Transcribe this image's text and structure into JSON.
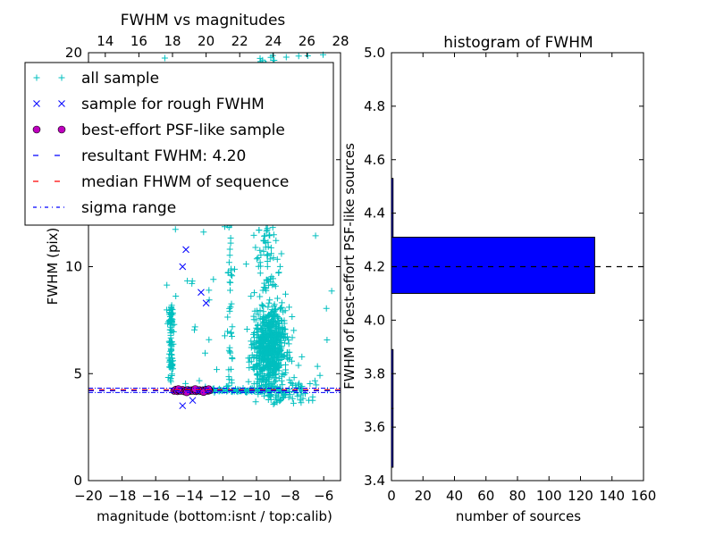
{
  "chart_data": [
    {
      "type": "scatter",
      "title": "FWHM vs magnitudes",
      "xlabel": "magnitude (bottom:isnt / top:calib)",
      "ylabel": "FWHM (pix)",
      "xlim": [
        -20,
        -5
      ],
      "ylim": [
        0,
        20
      ],
      "top_xlim": [
        13,
        28
      ],
      "x_ticks": [
        -20,
        -18,
        -16,
        -14,
        -12,
        -10,
        -8,
        -6
      ],
      "x_tick_labels": [
        "−20",
        "−18",
        "−16",
        "−14",
        "−12",
        "−10",
        "−8",
        "−6"
      ],
      "top_x_ticks": [
        14,
        16,
        18,
        20,
        22,
        24,
        26,
        28
      ],
      "top_x_tick_labels": [
        "14",
        "16",
        "18",
        "20",
        "22",
        "24",
        "26",
        "28"
      ],
      "y_ticks": [
        0,
        5,
        10,
        15,
        20
      ],
      "y_tick_labels": [
        "0",
        "5",
        "10",
        "15",
        "20"
      ],
      "grid": false,
      "legend_position": "top-left",
      "legend": [
        {
          "label": "all sample",
          "marker": "+",
          "color": "#00bfbf"
        },
        {
          "label": "sample for rough FWHM",
          "marker": "x",
          "color": "#0000ff"
        },
        {
          "label": "best-effort PSF-like sample",
          "marker": "o",
          "color": "#bf00bf"
        },
        {
          "label": "resultant FWHM: 4.20",
          "marker": "dashed",
          "color": "#0000ff"
        },
        {
          "label": "median FHWM of sequence",
          "marker": "dashed",
          "color": "#ff0000"
        },
        {
          "label": "sigma range",
          "marker": "dashdot",
          "color": "#0000ff"
        }
      ],
      "resultant_fwhm": 4.2,
      "median_fwhm": 4.25,
      "sigma_range": [
        4.12,
        4.32
      ],
      "series": [
        {
          "name": "sample for rough FWHM",
          "marker": "x",
          "color": "#0000ff",
          "points": [
            [
              -14.2,
              10.8
            ],
            [
              -14.4,
              10.0
            ],
            [
              -13.3,
              8.8
            ],
            [
              -13.0,
              8.3
            ],
            [
              -14.4,
              3.5
            ],
            [
              -13.8,
              3.75
            ],
            [
              -14.8,
              4.2
            ],
            [
              -14.0,
              4.25
            ],
            [
              -13.5,
              4.2
            ],
            [
              -12.9,
              4.28
            ]
          ]
        },
        {
          "name": "best-effort PSF-like sample",
          "marker": "o",
          "color": "#bf00bf",
          "points": [
            [
              -14.9,
              4.2
            ],
            [
              -14.8,
              4.25
            ],
            [
              -14.7,
              4.18
            ],
            [
              -14.6,
              4.22
            ],
            [
              -14.5,
              4.2
            ],
            [
              -14.4,
              4.24
            ],
            [
              -14.3,
              4.17
            ],
            [
              -14.2,
              4.21
            ],
            [
              -14.1,
              4.23
            ],
            [
              -14.0,
              4.19
            ],
            [
              -13.9,
              4.22
            ],
            [
              -13.8,
              4.2
            ],
            [
              -13.7,
              4.25
            ],
            [
              -13.6,
              4.18
            ],
            [
              -13.5,
              4.21
            ],
            [
              -13.4,
              4.23
            ],
            [
              -13.3,
              4.19
            ],
            [
              -13.2,
              4.22
            ],
            [
              -13.1,
              4.2
            ],
            [
              -13.0,
              4.24
            ],
            [
              -12.9,
              4.2
            ],
            [
              -12.8,
              4.22
            ],
            [
              -14.65,
              4.28
            ],
            [
              -14.15,
              4.13
            ],
            [
              -13.65,
              4.28
            ],
            [
              -13.15,
              4.14
            ],
            [
              -12.85,
              4.27
            ]
          ]
        }
      ]
    },
    {
      "type": "bar",
      "orientation": "horizontal",
      "title": "histogram of FWHM",
      "xlabel": "number of sources",
      "ylabel": "FWHM of best-effort PSF-like sources",
      "xlim": [
        0,
        160
      ],
      "ylim": [
        3.4,
        5.0
      ],
      "x_ticks": [
        0,
        20,
        40,
        60,
        80,
        100,
        120,
        140,
        160
      ],
      "y_ticks": [
        3.4,
        3.6,
        3.8,
        4.0,
        4.2,
        4.4,
        4.6,
        4.8,
        5.0
      ],
      "y_tick_labels": [
        "3.4",
        "3.6",
        "3.8",
        "4.0",
        "4.2",
        "4.4",
        "4.6",
        "4.8",
        "5.0"
      ],
      "grid": false,
      "bar_color": "#0000ff",
      "bins": [
        {
          "low": 3.45,
          "high": 3.67,
          "count": 1
        },
        {
          "low": 3.67,
          "high": 3.89,
          "count": 1
        },
        {
          "low": 4.1,
          "high": 4.31,
          "count": 129
        },
        {
          "low": 4.31,
          "high": 4.53,
          "count": 1
        }
      ],
      "reference_line": 4.2
    }
  ]
}
